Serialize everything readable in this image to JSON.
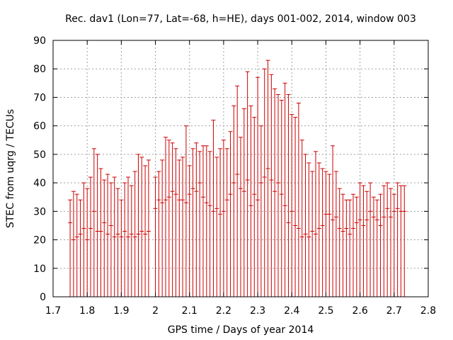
{
  "chart_data": {
    "type": "errorbar",
    "title": "Rec. dav1 (Lon=77, Lat=-68, h=HE), days 001-002, 2014, window 003",
    "xlabel": "GPS time / Days of year 2014",
    "ylabel": "STEC from uqrg / TECUs",
    "xlim": [
      1.7,
      2.8
    ],
    "ylim": [
      0,
      90
    ],
    "x_ticks": [
      "1.7",
      "1.8",
      "1.9",
      "2",
      "2.1",
      "2.2",
      "2.3",
      "2.4",
      "2.5",
      "2.6",
      "2.7",
      "2.8"
    ],
    "y_ticks": [
      "0",
      "10",
      "20",
      "30",
      "40",
      "50",
      "60",
      "70",
      "80",
      "90"
    ],
    "grid": true,
    "series_color": "#cc0000",
    "series": [
      {
        "x": [
          1.75,
          1.76,
          1.77,
          1.78,
          1.79,
          1.8,
          1.81,
          1.82,
          1.83,
          1.84,
          1.85,
          1.86,
          1.87,
          1.88,
          1.89,
          1.9,
          1.91,
          1.92,
          1.93,
          1.94,
          1.95,
          1.96,
          1.97,
          1.98,
          2.0,
          2.01,
          2.02,
          2.03,
          2.04,
          2.05,
          2.06,
          2.07,
          2.08,
          2.09,
          2.1,
          2.11,
          2.12,
          2.13,
          2.14,
          2.15,
          2.16,
          2.17,
          2.18,
          2.19,
          2.2,
          2.21,
          2.22,
          2.23,
          2.24,
          2.25,
          2.26,
          2.27,
          2.28,
          2.29,
          2.3,
          2.31,
          2.32,
          2.33,
          2.34,
          2.35,
          2.36,
          2.37,
          2.38,
          2.39,
          2.4,
          2.41,
          2.42,
          2.43,
          2.44,
          2.45,
          2.46,
          2.47,
          2.48,
          2.49,
          2.5,
          2.51,
          2.52,
          2.53,
          2.54,
          2.55,
          2.56,
          2.57,
          2.58,
          2.59,
          2.6,
          2.61,
          2.62,
          2.63,
          2.64,
          2.65,
          2.66,
          2.67,
          2.68,
          2.69,
          2.7,
          2.71,
          2.72,
          2.73
        ],
        "y_max": [
          34,
          37,
          36,
          34,
          40,
          38,
          42,
          52,
          50,
          45,
          41,
          43,
          40,
          42,
          38,
          34,
          40,
          42,
          39,
          44,
          50,
          49,
          46,
          48,
          42,
          44,
          48,
          56,
          55,
          54,
          52,
          48,
          49,
          60,
          46,
          52,
          54,
          51,
          53,
          53,
          51,
          62,
          49,
          52,
          55,
          52,
          58,
          67,
          74,
          56,
          66,
          79,
          67,
          63,
          77,
          60,
          80,
          83,
          78,
          73,
          71,
          69,
          75,
          71,
          64,
          63,
          68,
          55,
          50,
          47,
          44,
          51,
          47,
          45,
          44,
          43,
          53,
          44,
          38,
          36,
          34,
          34,
          36,
          35,
          40,
          39,
          37,
          40,
          35,
          34,
          36,
          39,
          40,
          38,
          36,
          40,
          39,
          39
        ],
        "y_mid": [
          26,
          20,
          21,
          22,
          24,
          20,
          24,
          30,
          23,
          23,
          26,
          22,
          25,
          21,
          22,
          21,
          23,
          21,
          22,
          21,
          22,
          23,
          22,
          23,
          31,
          34,
          33,
          34,
          35,
          37,
          36,
          34,
          34,
          33,
          36,
          38,
          37,
          40,
          35,
          33,
          32,
          30,
          31,
          29,
          30,
          34,
          36,
          40,
          43,
          38,
          37,
          41,
          32,
          36,
          34,
          40,
          42,
          45,
          41,
          37,
          40,
          36,
          32,
          26,
          30,
          25,
          24,
          21,
          22,
          21,
          23,
          22,
          24,
          25,
          29,
          29,
          27,
          28,
          24,
          23,
          24,
          22,
          24,
          26,
          27,
          25,
          27,
          30,
          28,
          27,
          25,
          28,
          31,
          28,
          30,
          31,
          30,
          30
        ],
        "y_min": [
          0,
          0,
          0,
          0,
          0,
          0,
          0,
          0,
          0,
          0,
          0,
          0,
          0,
          0,
          0,
          0,
          0,
          0,
          0,
          0,
          0,
          0,
          0,
          0,
          0,
          0,
          0,
          0,
          0,
          0,
          0,
          0,
          0,
          0,
          0,
          0,
          0,
          0,
          0,
          0,
          0,
          0,
          0,
          0,
          0,
          0,
          0,
          0,
          0,
          0,
          0,
          0,
          0,
          0,
          0,
          0,
          0,
          0,
          0,
          0,
          0,
          0,
          0,
          0,
          0,
          0,
          0,
          0,
          0,
          0,
          0,
          0,
          0,
          0,
          0,
          0,
          0,
          0,
          0,
          0,
          0,
          0,
          0,
          0,
          0,
          0,
          0,
          0,
          0,
          0,
          0,
          0,
          0,
          0,
          0,
          0,
          0,
          0
        ]
      }
    ]
  }
}
